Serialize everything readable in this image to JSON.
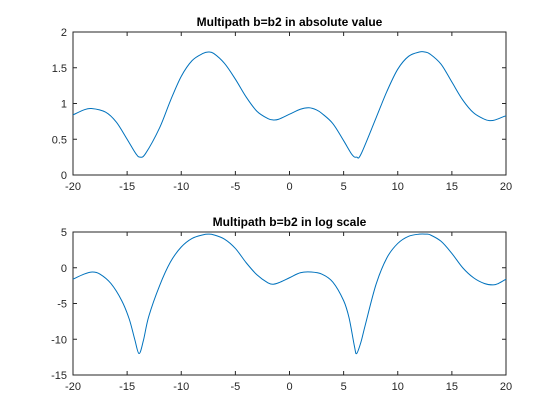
{
  "chart_data": [
    {
      "type": "line",
      "title": "Multipath b=b2 in absolute value",
      "xlabel": "",
      "ylabel": "",
      "xlim": [
        -20,
        20
      ],
      "ylim": [
        0,
        2
      ],
      "xticks": [
        -20,
        -15,
        -10,
        -5,
        0,
        5,
        10,
        15,
        20
      ],
      "yticks": [
        0,
        0.5,
        1,
        1.5,
        2
      ],
      "xtick_labels": [
        "-20",
        "-15",
        "-10",
        "-5",
        "0",
        "5",
        "10",
        "15",
        "20"
      ],
      "ytick_labels": [
        "0",
        "0.5",
        "1",
        "1.5",
        "2"
      ],
      "grid": true,
      "line_color": "#0072bd",
      "series": [
        {
          "x": [
            -20,
            -19,
            -18.3,
            -17,
            -16,
            -15,
            -14.2,
            -13.8,
            -13.3,
            -12,
            -11,
            -10,
            -9,
            -8,
            -7.5,
            -7,
            -6,
            -5,
            -4,
            -3,
            -2,
            -1.5,
            -1,
            0,
            1,
            1.8,
            2.5,
            3,
            4,
            5,
            5.8,
            6.2,
            6.6,
            8,
            9,
            10,
            11,
            12,
            12.5,
            13,
            14,
            15,
            16,
            17,
            18,
            18.5,
            19,
            20
          ],
          "y": [
            0.84,
            0.91,
            0.93,
            0.88,
            0.74,
            0.5,
            0.3,
            0.25,
            0.3,
            0.66,
            1.04,
            1.38,
            1.6,
            1.7,
            1.72,
            1.7,
            1.56,
            1.34,
            1.09,
            0.89,
            0.79,
            0.77,
            0.78,
            0.85,
            0.92,
            0.94,
            0.91,
            0.86,
            0.72,
            0.48,
            0.28,
            0.25,
            0.29,
            0.8,
            1.17,
            1.48,
            1.66,
            1.72,
            1.72,
            1.69,
            1.55,
            1.3,
            1.05,
            0.87,
            0.78,
            0.76,
            0.77,
            0.83
          ]
        }
      ]
    },
    {
      "type": "line",
      "title": "Multipath b=b2 in log scale",
      "xlabel": "",
      "ylabel": "",
      "xlim": [
        -20,
        20
      ],
      "ylim": [
        -15,
        5
      ],
      "xticks": [
        -20,
        -15,
        -10,
        -5,
        0,
        5,
        10,
        15,
        20
      ],
      "yticks": [
        -15,
        -10,
        -5,
        0,
        5
      ],
      "xtick_labels": [
        "-20",
        "-15",
        "-10",
        "-5",
        "0",
        "5",
        "10",
        "15",
        "20"
      ],
      "ytick_labels": [
        "-15",
        "-10",
        "-5",
        "0",
        "5"
      ],
      "grid": true,
      "line_color": "#0072bd",
      "series": [
        {
          "x": [
            -20,
            -19,
            -18.2,
            -17.5,
            -16.5,
            -15.5,
            -14.8,
            -14.3,
            -13.9,
            -13.5,
            -13,
            -12,
            -11,
            -10,
            -9,
            -8,
            -7.5,
            -7,
            -6,
            -5,
            -4,
            -3,
            -2,
            -1.5,
            -1,
            0,
            1,
            2,
            3,
            4,
            5,
            5.5,
            6,
            6.2,
            6.6,
            7,
            8,
            9,
            10,
            11,
            12,
            12.6,
            13,
            14,
            15,
            16,
            17,
            18,
            18.8,
            19.3,
            20
          ],
          "y": [
            -1.6,
            -0.9,
            -0.6,
            -0.9,
            -2.2,
            -4.6,
            -7.2,
            -10.0,
            -12.0,
            -10.2,
            -6.8,
            -2.5,
            0.8,
            2.9,
            4.1,
            4.6,
            4.7,
            4.6,
            4.0,
            2.7,
            0.7,
            -1.0,
            -2.1,
            -2.3,
            -2.1,
            -1.4,
            -0.7,
            -0.6,
            -0.9,
            -2.0,
            -4.6,
            -7.0,
            -11.0,
            -12.0,
            -10.4,
            -8.0,
            -2.3,
            1.4,
            3.4,
            4.4,
            4.7,
            4.7,
            4.6,
            3.7,
            2.0,
            0.0,
            -1.4,
            -2.2,
            -2.4,
            -2.2,
            -1.6
          ]
        }
      ]
    }
  ]
}
